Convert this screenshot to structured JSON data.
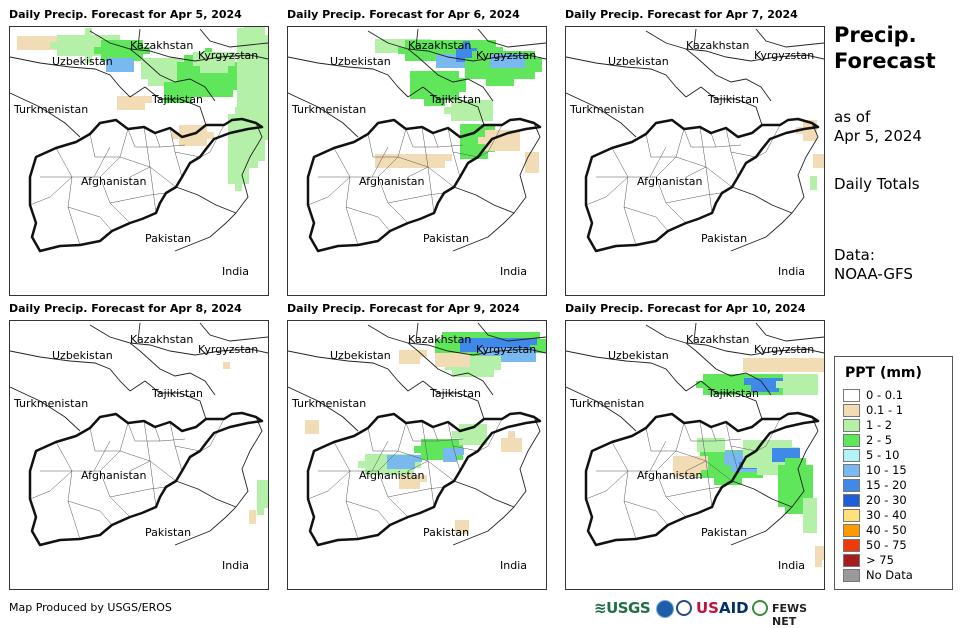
{
  "panels": [
    {
      "title": "Daily Precip. Forecast for Apr 5, 2024"
    },
    {
      "title": "Daily Precip. Forecast for Apr 6, 2024"
    },
    {
      "title": "Daily Precip. Forecast for Apr 7, 2024"
    },
    {
      "title": "Daily Precip. Forecast for Apr 8, 2024"
    },
    {
      "title": "Daily Precip. Forecast for Apr 9, 2024"
    },
    {
      "title": "Daily Precip. Forecast for Apr 10, 2024"
    }
  ],
  "map_labels": {
    "kazakhstan": "Kazakhstan",
    "kyrgyzstan": "Kyrgyzstan",
    "uzbekistan": "Uzbekistan",
    "turkmenistan": "Turkmenistan",
    "tajikistan": "Tajikistan",
    "afghanistan": "Afghanistan",
    "pakistan": "Pakistan",
    "india": "India"
  },
  "sidebar": {
    "title_line1": "Precip.",
    "title_line2": "Forecast",
    "asof_line1": "as of",
    "asof_line2": "Apr 5, 2024",
    "totals": "Daily Totals",
    "data_line1": "Data:",
    "data_line2": "NOAA-GFS"
  },
  "legend": {
    "title": "PPT (mm)",
    "items": [
      {
        "label": "0 - 0.1",
        "color": "#ffffff"
      },
      {
        "label": "0.1 - 1",
        "color": "#f1dcb5"
      },
      {
        "label": "1 - 2",
        "color": "#b4f0a8"
      },
      {
        "label": "2 - 5",
        "color": "#5fe65a"
      },
      {
        "label": "5 - 10",
        "color": "#b5f2f7"
      },
      {
        "label": "10 - 15",
        "color": "#7ab8f0"
      },
      {
        "label": "15 - 20",
        "color": "#3f8ae8"
      },
      {
        "label": "20 - 30",
        "color": "#1f5ed6"
      },
      {
        "label": "30 - 40",
        "color": "#ffe07a"
      },
      {
        "label": "40 - 50",
        "color": "#ff9a00"
      },
      {
        "label": "50 - 75",
        "color": "#ee3a0a"
      },
      {
        "label": "> 75",
        "color": "#a51d1d"
      },
      {
        "label": "No Data",
        "color": "#9a9a9a"
      }
    ]
  },
  "footer": {
    "credit": "Map Produced by USGS/EROS",
    "logo_usgs": "≋USGS",
    "logo_usaid_a": "US",
    "logo_usaid_b": "AID",
    "logo_fews": "FEWS NET"
  }
}
